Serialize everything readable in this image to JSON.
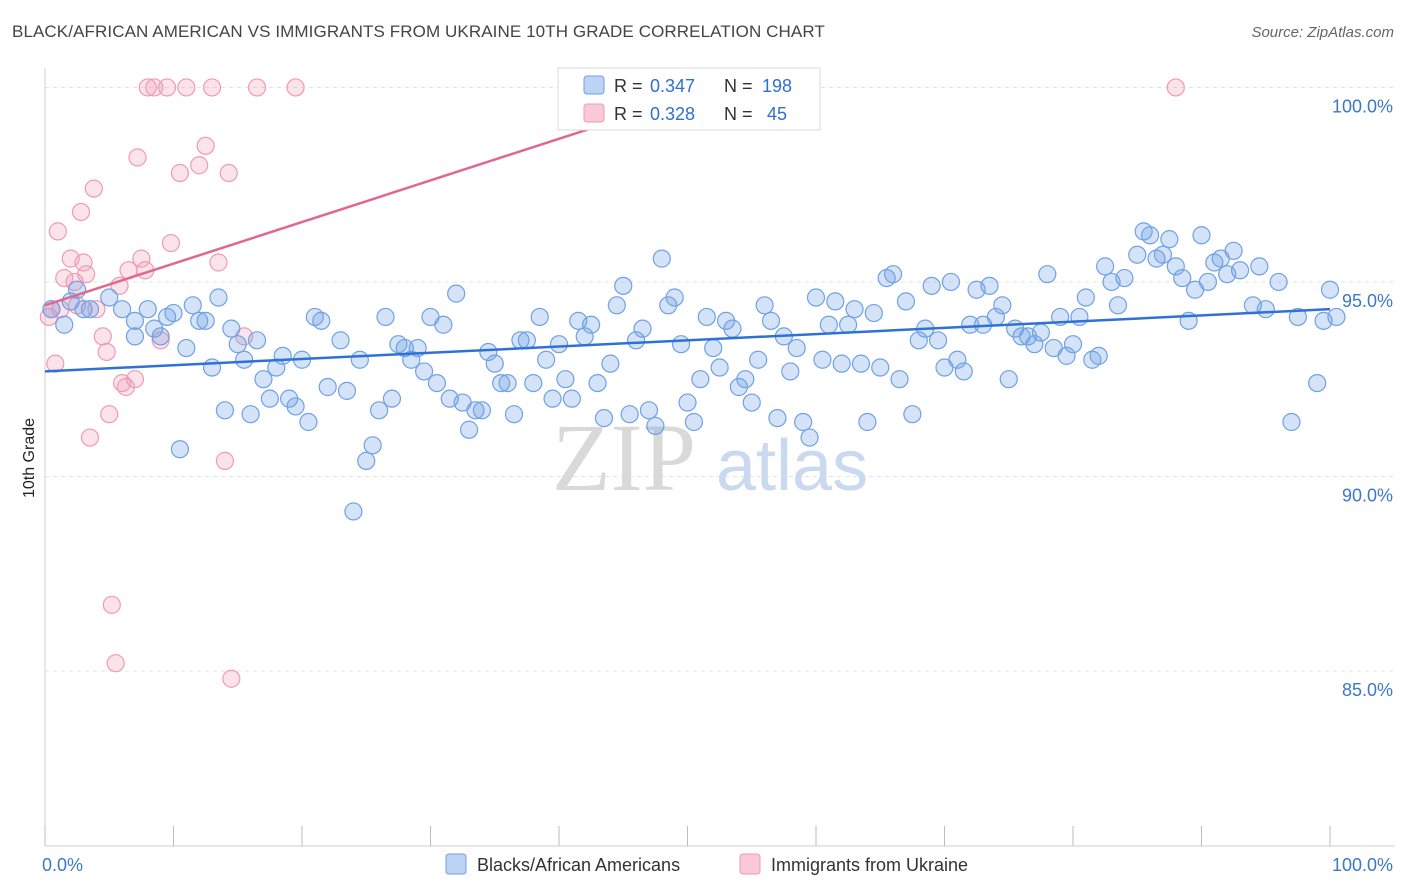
{
  "title": "BLACK/AFRICAN AMERICAN VS IMMIGRANTS FROM UKRAINE 10TH GRADE CORRELATION CHART",
  "source": "Source: ZipAtlas.com",
  "watermark": {
    "zip": "ZIP",
    "atlas": "atlas"
  },
  "legend": {
    "rows": [
      {
        "r_label": "R =",
        "r_value": "0.347",
        "n_label": "N =",
        "n_value": "198"
      },
      {
        "r_label": "R =",
        "r_value": "0.328",
        "n_label": "N =",
        "n_value": " 45"
      }
    ]
  },
  "bottom_legend": [
    "Blacks/African Americans",
    "Immigrants from Ukraine"
  ],
  "colors": {
    "blue": "#6fa1e6",
    "blue_line": "#2f72d6",
    "pink": "#f19ab5",
    "pink_line": "#e06890",
    "tick": "#3a78c9"
  },
  "chart_data": {
    "type": "scatter",
    "title": "BLACK/AFRICAN AMERICAN VS IMMIGRANTS FROM UKRAINE 10TH GRADE CORRELATION CHART",
    "xlabel": "",
    "ylabel": "10th Grade",
    "xlim": [
      0,
      100
    ],
    "ylim": [
      80.5,
      100.5
    ],
    "x_ticks": [
      "0.0%",
      "100.0%"
    ],
    "y_ticks": [
      {
        "value": 85,
        "label": "85.0%"
      },
      {
        "value": 90,
        "label": "90.0%"
      },
      {
        "value": 95,
        "label": "95.0%"
      },
      {
        "value": 100,
        "label": "100.0%"
      }
    ],
    "grid": true,
    "legend_position": "top-center",
    "series": [
      {
        "name": "Blacks/African Americans",
        "R": 0.347,
        "N": 198,
        "trend": [
          [
            0,
            92.7
          ],
          [
            100,
            94.3
          ]
        ],
        "points": [
          [
            0.5,
            94.3
          ],
          [
            1.5,
            93.9
          ],
          [
            2,
            94.5
          ],
          [
            2.5,
            94.8
          ],
          [
            3,
            94.3
          ],
          [
            3.5,
            94.3
          ],
          [
            5,
            94.6
          ],
          [
            6,
            94.3
          ],
          [
            7,
            93.6
          ],
          [
            7,
            94.0
          ],
          [
            8,
            94.3
          ],
          [
            8.5,
            93.8
          ],
          [
            9,
            93.6
          ],
          [
            9.5,
            94.1
          ],
          [
            10,
            94.2
          ],
          [
            10.5,
            90.7
          ],
          [
            11,
            93.3
          ],
          [
            11.5,
            94.4
          ],
          [
            12,
            94.0
          ],
          [
            12.5,
            94.0
          ],
          [
            13,
            92.8
          ],
          [
            13.5,
            94.6
          ],
          [
            14,
            91.7
          ],
          [
            14.5,
            93.8
          ],
          [
            15,
            93.4
          ],
          [
            15.5,
            93.0
          ],
          [
            16,
            91.6
          ],
          [
            16.5,
            93.5
          ],
          [
            17,
            92.5
          ],
          [
            17.5,
            92.0
          ],
          [
            18,
            92.8
          ],
          [
            18.5,
            93.1
          ],
          [
            19,
            92.0
          ],
          [
            19.5,
            91.8
          ],
          [
            20,
            93.0
          ],
          [
            20.5,
            91.4
          ],
          [
            21,
            94.1
          ],
          [
            21.5,
            94.0
          ],
          [
            22,
            92.3
          ],
          [
            23,
            93.5
          ],
          [
            23.5,
            92.2
          ],
          [
            24,
            89.1
          ],
          [
            24.5,
            93.0
          ],
          [
            25,
            90.4
          ],
          [
            25.5,
            90.8
          ],
          [
            26,
            91.7
          ],
          [
            26.5,
            94.1
          ],
          [
            27,
            92.0
          ],
          [
            27.5,
            93.4
          ],
          [
            28,
            93.3
          ],
          [
            28.5,
            93.0
          ],
          [
            29,
            93.3
          ],
          [
            29.5,
            92.7
          ],
          [
            30,
            94.1
          ],
          [
            30.5,
            92.4
          ],
          [
            31,
            93.9
          ],
          [
            31.5,
            92.0
          ],
          [
            32,
            94.7
          ],
          [
            32.5,
            91.9
          ],
          [
            33,
            91.2
          ],
          [
            33.5,
            91.7
          ],
          [
            34,
            91.7
          ],
          [
            34.5,
            93.2
          ],
          [
            35,
            92.9
          ],
          [
            35.5,
            92.4
          ],
          [
            36,
            92.4
          ],
          [
            36.5,
            91.6
          ],
          [
            37,
            93.5
          ],
          [
            37.5,
            93.5
          ],
          [
            38,
            92.4
          ],
          [
            38.5,
            94.1
          ],
          [
            39,
            93.0
          ],
          [
            39.5,
            92.0
          ],
          [
            40,
            93.4
          ],
          [
            40.5,
            92.5
          ],
          [
            41,
            92.0
          ],
          [
            41.5,
            94.0
          ],
          [
            42,
            93.6
          ],
          [
            42.5,
            93.9
          ],
          [
            43,
            92.4
          ],
          [
            43.5,
            91.5
          ],
          [
            44,
            92.9
          ],
          [
            44.5,
            94.4
          ],
          [
            45,
            94.9
          ],
          [
            45.5,
            91.6
          ],
          [
            46,
            93.5
          ],
          [
            46.5,
            93.8
          ],
          [
            47,
            91.7
          ],
          [
            47.5,
            91.3
          ],
          [
            48,
            95.6
          ],
          [
            48.5,
            94.4
          ],
          [
            49,
            94.6
          ],
          [
            49.5,
            93.4
          ],
          [
            50,
            91.9
          ],
          [
            50.5,
            91.4
          ],
          [
            51,
            92.5
          ],
          [
            51.5,
            94.1
          ],
          [
            52,
            93.3
          ],
          [
            52.5,
            92.8
          ],
          [
            53,
            94.0
          ],
          [
            53.5,
            93.8
          ],
          [
            54,
            92.3
          ],
          [
            54.5,
            92.5
          ],
          [
            55,
            91.9
          ],
          [
            55.5,
            93.0
          ],
          [
            56,
            94.4
          ],
          [
            56.5,
            94.0
          ],
          [
            57,
            91.5
          ],
          [
            57.5,
            93.6
          ],
          [
            58,
            92.7
          ],
          [
            58.5,
            93.3
          ],
          [
            59,
            91.4
          ],
          [
            59.5,
            91.0
          ],
          [
            60,
            94.6
          ],
          [
            60.5,
            93.0
          ],
          [
            61,
            93.9
          ],
          [
            61.5,
            94.5
          ],
          [
            62,
            92.9
          ],
          [
            62.5,
            93.9
          ],
          [
            63,
            94.3
          ],
          [
            63.5,
            92.9
          ],
          [
            64,
            91.4
          ],
          [
            64.5,
            94.2
          ],
          [
            65,
            92.8
          ],
          [
            65.5,
            95.1
          ],
          [
            66,
            95.2
          ],
          [
            66.5,
            92.5
          ],
          [
            67,
            94.5
          ],
          [
            67.5,
            91.6
          ],
          [
            68,
            93.5
          ],
          [
            68.5,
            93.8
          ],
          [
            69,
            94.9
          ],
          [
            69.5,
            93.5
          ],
          [
            70,
            92.8
          ],
          [
            70.5,
            95.0
          ],
          [
            71,
            93.0
          ],
          [
            71.5,
            92.7
          ],
          [
            72,
            93.9
          ],
          [
            72.5,
            94.8
          ],
          [
            73,
            93.9
          ],
          [
            73.5,
            94.9
          ],
          [
            74,
            94.1
          ],
          [
            74.5,
            94.4
          ],
          [
            75,
            92.5
          ],
          [
            75.5,
            93.8
          ],
          [
            76,
            93.6
          ],
          [
            76.5,
            93.6
          ],
          [
            77,
            93.4
          ],
          [
            77.5,
            93.7
          ],
          [
            78,
            95.2
          ],
          [
            78.5,
            93.3
          ],
          [
            79,
            94.1
          ],
          [
            79.5,
            93.1
          ],
          [
            80,
            93.4
          ],
          [
            80.5,
            94.1
          ],
          [
            81,
            94.6
          ],
          [
            81.5,
            93.0
          ],
          [
            82,
            93.1
          ],
          [
            82.5,
            95.4
          ],
          [
            83,
            95.0
          ],
          [
            83.5,
            94.4
          ],
          [
            84,
            95.1
          ],
          [
            85,
            95.7
          ],
          [
            85.5,
            96.3
          ],
          [
            86,
            96.2
          ],
          [
            86.5,
            95.6
          ],
          [
            87,
            95.7
          ],
          [
            87.5,
            96.1
          ],
          [
            88,
            95.4
          ],
          [
            88.5,
            95.1
          ],
          [
            89,
            94.0
          ],
          [
            89.5,
            94.8
          ],
          [
            90,
            96.2
          ],
          [
            90.5,
            95.0
          ],
          [
            91,
            95.5
          ],
          [
            91.5,
            95.6
          ],
          [
            92,
            95.2
          ],
          [
            92.5,
            95.8
          ],
          [
            93,
            95.3
          ],
          [
            94,
            94.4
          ],
          [
            94.5,
            95.4
          ],
          [
            95,
            94.3
          ],
          [
            96,
            95.0
          ],
          [
            97,
            91.4
          ],
          [
            97.5,
            94.1
          ],
          [
            99,
            92.4
          ],
          [
            99.5,
            94.0
          ],
          [
            100,
            94.8
          ],
          [
            100.5,
            94.1
          ]
        ]
      },
      {
        "name": "Immigrants from Ukraine",
        "R": 0.328,
        "N": 45,
        "trend": [
          [
            0,
            94.4
          ],
          [
            100,
            105.1
          ]
        ],
        "points": [
          [
            0.3,
            94.1
          ],
          [
            0.5,
            94.3
          ],
          [
            0.8,
            92.9
          ],
          [
            1,
            96.3
          ],
          [
            1.2,
            94.3
          ],
          [
            1.5,
            95.1
          ],
          [
            2,
            95.6
          ],
          [
            2.3,
            95.0
          ],
          [
            2.5,
            94.4
          ],
          [
            2.8,
            96.8
          ],
          [
            3,
            95.5
          ],
          [
            3.2,
            95.2
          ],
          [
            3.5,
            91.0
          ],
          [
            3.8,
            97.4
          ],
          [
            4,
            94.3
          ],
          [
            4.5,
            93.6
          ],
          [
            4.8,
            93.2
          ],
          [
            5,
            91.6
          ],
          [
            5.2,
            86.7
          ],
          [
            5.5,
            85.2
          ],
          [
            5.8,
            94.9
          ],
          [
            6,
            92.4
          ],
          [
            6.3,
            92.3
          ],
          [
            6.5,
            95.3
          ],
          [
            7,
            92.5
          ],
          [
            7.2,
            98.2
          ],
          [
            7.5,
            95.6
          ],
          [
            7.8,
            95.3
          ],
          [
            8,
            100.0
          ],
          [
            8.5,
            100.0
          ],
          [
            9,
            93.5
          ],
          [
            9.5,
            100.0
          ],
          [
            9.8,
            96.0
          ],
          [
            10.5,
            97.8
          ],
          [
            11,
            100.0
          ],
          [
            12,
            98.0
          ],
          [
            12.5,
            98.5
          ],
          [
            13,
            100.0
          ],
          [
            13.5,
            95.5
          ],
          [
            14,
            90.4
          ],
          [
            14.3,
            97.8
          ],
          [
            14.5,
            84.8
          ],
          [
            15.5,
            93.6
          ],
          [
            16.5,
            100.0
          ],
          [
            19.5,
            100.0
          ],
          [
            88,
            100.0
          ]
        ]
      }
    ]
  }
}
